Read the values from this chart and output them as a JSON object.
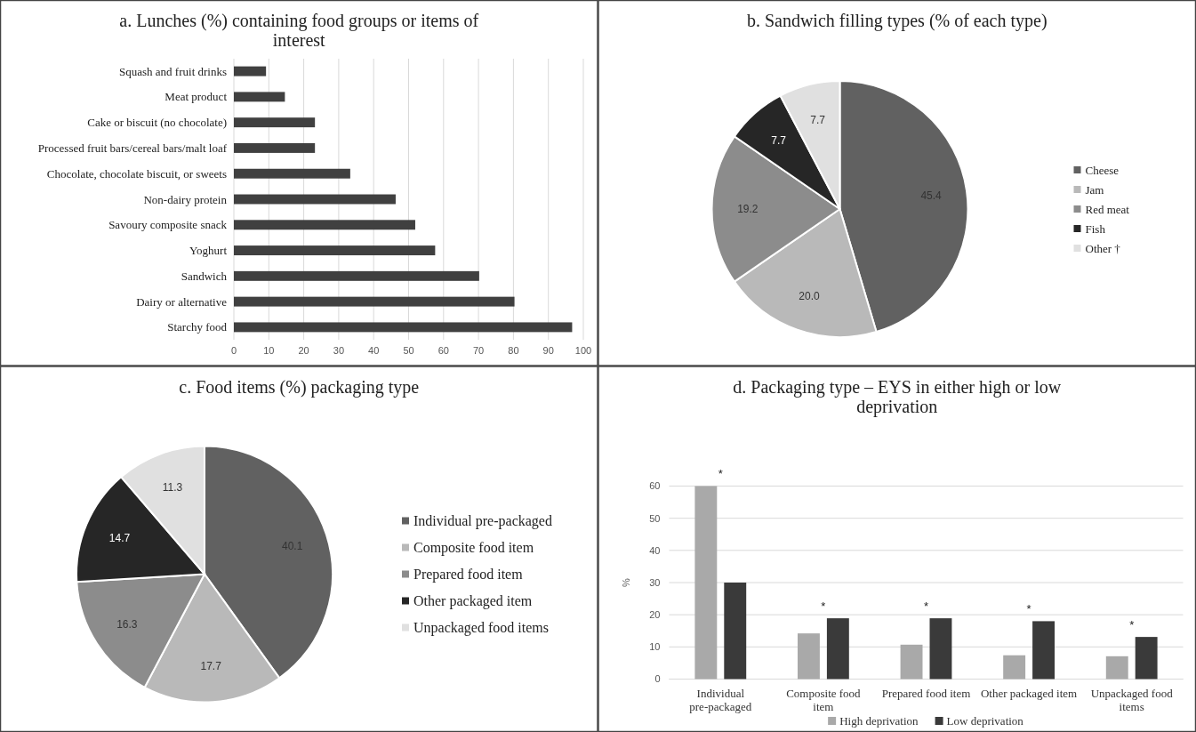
{
  "chart_data": [
    {
      "type": "bar",
      "orientation": "horizontal",
      "title": "a. Lunches (%) containing food groups or items of interest",
      "categories": [
        "Squash and fruit drinks",
        "Meat product",
        "Cake or biscuit (no chocolate)",
        "Processed fruit bars/cereal bars/malt loaf",
        "Chocolate, chocolate biscuit, or sweets",
        "Non-dairy protein",
        "Savoury composite snack",
        "Yoghurt",
        "Sandwich",
        "Dairy or alternative",
        "Starchy food"
      ],
      "values": [
        9.2,
        14.6,
        23.2,
        23.2,
        33.3,
        46.3,
        51.9,
        57.6,
        70.2,
        80.3,
        96.8
      ],
      "color": "#404040",
      "xlim": [
        0,
        100
      ],
      "xticks": [
        0,
        10,
        20,
        30,
        40,
        50,
        60,
        70,
        80,
        90,
        100
      ],
      "grid": "x"
    },
    {
      "type": "pie",
      "title": "b. Sandwich filling types (% of each type)",
      "categories": [
        "Cheese",
        "Jam",
        "Red meat",
        "Fish",
        "Other †"
      ],
      "values": [
        45.4,
        20.0,
        19.2,
        7.7,
        7.7
      ],
      "value_labels": [
        "45.4",
        "20.0",
        "19.2",
        "7.7",
        "7.7"
      ],
      "colors": [
        "#616161",
        "#b9b9b9",
        "#8c8c8c",
        "#262626",
        "#e0e0e0"
      ],
      "legend": "right"
    },
    {
      "type": "pie",
      "title": "c. Food items (%) packaging type",
      "categories": [
        "Individual pre-packaged",
        "Composite food item",
        "Prepared food item",
        "Other packaged item",
        "Unpackaged food items"
      ],
      "values": [
        40.1,
        17.7,
        16.3,
        14.7,
        11.3
      ],
      "data_labels": true,
      "colors": [
        "#616161",
        "#b9b9b9",
        "#8c8c8c",
        "#262626",
        "#e0e0e0"
      ],
      "legend": "right"
    },
    {
      "type": "bar",
      "title": "d. Packaging type – EYS in either high or low deprivation",
      "ylabel": "%",
      "categories": [
        "Individual pre-packaged",
        "Composite food item",
        "Prepared food item",
        "Other packaged item",
        "Unpackaged food items"
      ],
      "series": [
        {
          "name": "High deprivation",
          "color": "#a9a9a9",
          "values": [
            60,
            14.2,
            10.7,
            7.4,
            7.1
          ]
        },
        {
          "name": "Low deprivation",
          "color": "#3a3a3a",
          "values": [
            30,
            18.9,
            18.9,
            18.0,
            13.1
          ]
        }
      ],
      "ylim": [
        0,
        60
      ],
      "yticks": [
        0,
        10,
        20,
        30,
        40,
        50,
        60
      ],
      "grid": "y",
      "legend": "bottom",
      "annotations": [
        "*",
        "*",
        "*",
        "*",
        "*"
      ]
    }
  ]
}
